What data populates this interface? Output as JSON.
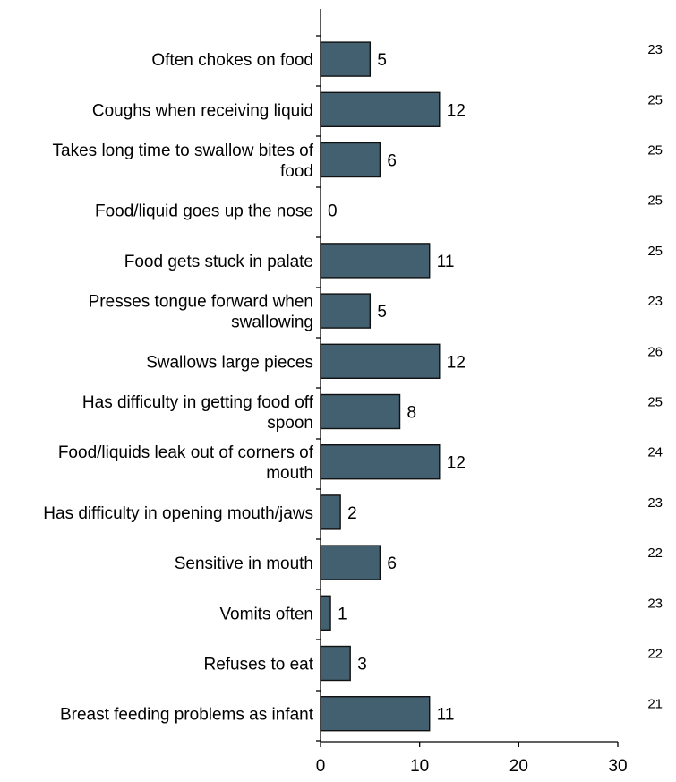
{
  "chart_data": {
    "type": "bar",
    "orientation": "horizontal",
    "bar_color": "#42606f",
    "categories": [
      "Often chokes on food",
      "Coughs when receiving liquid",
      "Takes long time to swallow bites of food",
      "Food/liquid goes up the nose",
      "Food gets stuck in palate",
      "Presses tongue forward when swallowing",
      "Swallows large pieces",
      "Has difficulty in getting food off spoon",
      "Food/liquids leak out of corners of mouth",
      "Has difficulty in opening mouth/jaws",
      "Sensitive in mouth",
      "Vomits often",
      "Refuses to eat",
      "Breast feeding problems as infant"
    ],
    "category_lines": [
      [
        "Often chokes on food"
      ],
      [
        "Coughs when receiving liquid"
      ],
      [
        "Takes long time to swallow bites of",
        "food"
      ],
      [
        "Food/liquid goes up the nose"
      ],
      [
        "Food gets stuck in palate"
      ],
      [
        "Presses tongue forward when",
        "swallowing"
      ],
      [
        "Swallows large pieces"
      ],
      [
        "Has difficulty in getting food off",
        "spoon"
      ],
      [
        "Food/liquids leak out of corners of",
        "mouth"
      ],
      [
        "Has difficulty in opening mouth/jaws"
      ],
      [
        "Sensitive in mouth"
      ],
      [
        "Vomits often"
      ],
      [
        "Refuses to eat"
      ],
      [
        "Breast feeding problems as infant"
      ]
    ],
    "values": [
      5,
      12,
      6,
      0,
      11,
      5,
      12,
      8,
      12,
      2,
      6,
      1,
      3,
      11
    ],
    "value_labels": [
      "5",
      "12",
      "6",
      "0",
      "11",
      "5",
      "12",
      "8",
      "12",
      "2",
      "6",
      "1",
      "3",
      "11"
    ],
    "n_labels": [
      "23",
      "25",
      "25",
      "25",
      "25",
      "23",
      "26",
      "25",
      "24",
      "23",
      "22",
      "23",
      "22",
      "21"
    ],
    "xlim": [
      0,
      30
    ],
    "xticks": [
      "0",
      "10",
      "20",
      "30"
    ],
    "title": "",
    "xlabel": "",
    "ylabel": "",
    "grid": false,
    "legend": "none"
  }
}
